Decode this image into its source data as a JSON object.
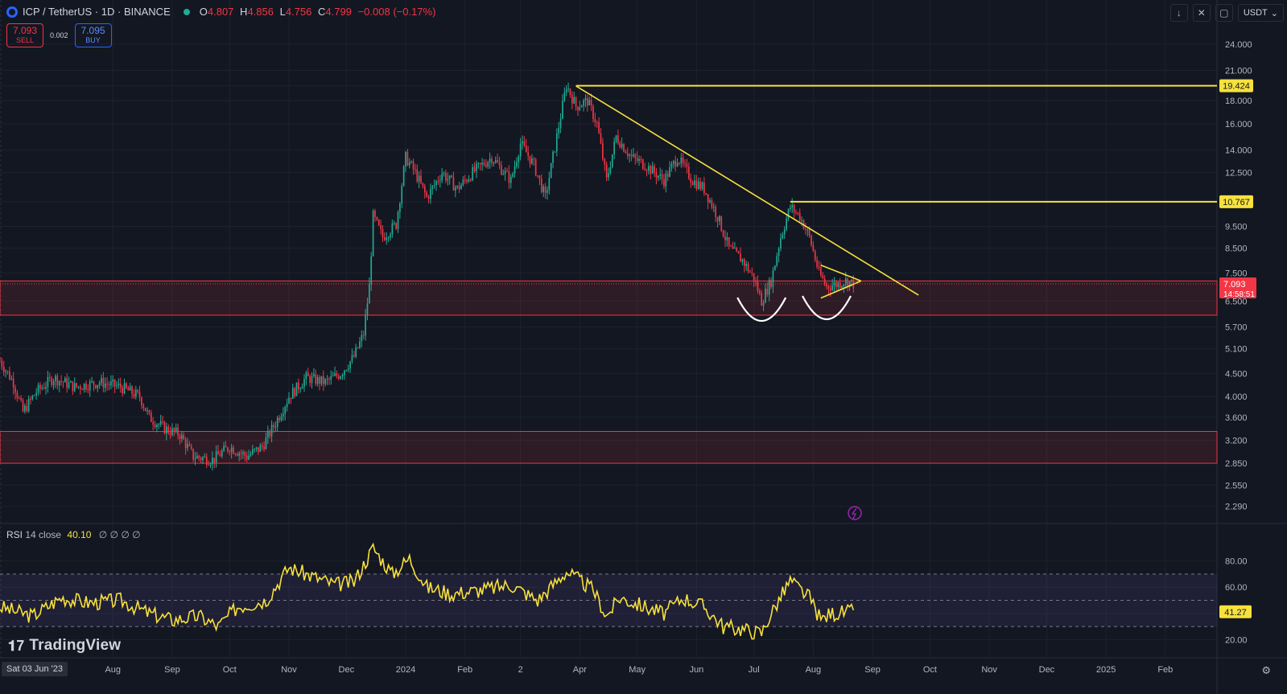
{
  "header": {
    "symbol": "ICP / TetherUS · 1D · BINANCE",
    "ohlc": {
      "o_label": "O",
      "o": "4.807",
      "h_label": "H",
      "h": "4.856",
      "l_label": "L",
      "l": "4.756",
      "c_label": "C",
      "c": "4.799",
      "change": "−0.008 (−0.17%)"
    }
  },
  "trade": {
    "sell_price": "7.093",
    "sell_label": "SELL",
    "spread": "0.002",
    "buy_price": "7.095",
    "buy_label": "BUY"
  },
  "toolbar": {
    "currency": "USDT"
  },
  "rsi": {
    "name": "RSI",
    "params": "14 close",
    "value": "40.10",
    "placeholders": "∅ ∅ ∅ ∅",
    "current_label": "41.27"
  },
  "branding": {
    "logo_text": "TradingView"
  },
  "cursor_date": "Sat 03 Jun '23",
  "colors": {
    "background": "#131722",
    "up": "#22ab94",
    "down": "#f23645",
    "trendline": "#f7e13c",
    "zone": "#f23645",
    "rsi_band": "#7e57c2"
  },
  "chart_data": [
    {
      "type": "candlestick",
      "scale": "log",
      "x_range": [
        "2023-06-03",
        "2025-02-28"
      ],
      "ylim": [
        2.15,
        25.5
      ],
      "y_ticks": [
        2.29,
        2.55,
        2.85,
        3.2,
        3.6,
        4.0,
        4.5,
        5.1,
        5.7,
        6.5,
        7.5,
        8.5,
        9.5,
        10.767,
        12.5,
        14.0,
        16.0,
        18.0,
        19.424,
        21.0,
        24.0
      ],
      "y_tick_labels": [
        "2.290",
        "2.550",
        "2.850",
        "3.200",
        "3.600",
        "4.000",
        "4.500",
        "5.100",
        "5.700",
        "6.500",
        "7.500",
        "8.500",
        "9.500",
        "10.767",
        "12.500",
        "14.000",
        "16.000",
        "18.000",
        "19.424",
        "21.000",
        "24.000"
      ],
      "x_ticks": [
        {
          "label": "Aug",
          "date": "2023-08-01"
        },
        {
          "label": "Sep",
          "date": "2023-09-01"
        },
        {
          "label": "Oct",
          "date": "2023-10-01"
        },
        {
          "label": "Nov",
          "date": "2023-11-01"
        },
        {
          "label": "Dec",
          "date": "2023-12-01"
        },
        {
          "label": "2024",
          "date": "2024-01-01"
        },
        {
          "label": "Feb",
          "date": "2024-02-01"
        },
        {
          "label": "2",
          "date": "2024-03-01"
        },
        {
          "label": "Apr",
          "date": "2024-04-01"
        },
        {
          "label": "May",
          "date": "2024-05-01"
        },
        {
          "label": "Jun",
          "date": "2024-06-01"
        },
        {
          "label": "Jul",
          "date": "2024-07-01"
        },
        {
          "label": "Aug",
          "date": "2024-08-01"
        },
        {
          "label": "Sep",
          "date": "2024-09-01"
        },
        {
          "label": "Oct",
          "date": "2024-10-01"
        },
        {
          "label": "Nov",
          "date": "2024-11-01"
        },
        {
          "label": "Dec",
          "date": "2024-12-01"
        },
        {
          "label": "2025",
          "date": "2025-01-01"
        },
        {
          "label": "Feb",
          "date": "2025-02-01"
        }
      ],
      "close_path": [
        [
          "2023-06-03",
          4.8
        ],
        [
          "2023-06-10",
          4.3
        ],
        [
          "2023-06-15",
          3.7
        ],
        [
          "2023-06-22",
          4.1
        ],
        [
          "2023-07-01",
          4.4
        ],
        [
          "2023-07-12",
          4.2
        ],
        [
          "2023-07-25",
          4.3
        ],
        [
          "2023-08-05",
          4.2
        ],
        [
          "2023-08-15",
          4.0
        ],
        [
          "2023-08-20",
          3.6
        ],
        [
          "2023-08-28",
          3.4
        ],
        [
          "2023-09-05",
          3.3
        ],
        [
          "2023-09-12",
          2.95
        ],
        [
          "2023-09-22",
          2.9
        ],
        [
          "2023-10-01",
          3.1
        ],
        [
          "2023-10-10",
          2.95
        ],
        [
          "2023-10-18",
          3.1
        ],
        [
          "2023-10-25",
          3.5
        ],
        [
          "2023-11-01",
          4.0
        ],
        [
          "2023-11-10",
          4.4
        ],
        [
          "2023-11-20",
          4.3
        ],
        [
          "2023-11-28",
          4.5
        ],
        [
          "2023-12-05",
          4.9
        ],
        [
          "2023-12-10",
          5.5
        ],
        [
          "2023-12-13",
          7.0
        ],
        [
          "2023-12-15",
          10.0
        ],
        [
          "2023-12-20",
          9.0
        ],
        [
          "2023-12-27",
          9.6
        ],
        [
          "2024-01-01",
          13.5
        ],
        [
          "2024-01-06",
          12.5
        ],
        [
          "2024-01-12",
          11.0
        ],
        [
          "2024-01-20",
          12.5
        ],
        [
          "2024-01-28",
          11.5
        ],
        [
          "2024-02-05",
          12.5
        ],
        [
          "2024-02-15",
          13.5
        ],
        [
          "2024-02-25",
          12.0
        ],
        [
          "2024-03-01",
          14.5
        ],
        [
          "2024-03-08",
          13.0
        ],
        [
          "2024-03-14",
          11.0
        ],
        [
          "2024-03-20",
          15.0
        ],
        [
          "2024-03-25",
          19.5
        ],
        [
          "2024-03-30",
          17.5
        ],
        [
          "2024-04-05",
          18.0
        ],
        [
          "2024-04-10",
          16.0
        ],
        [
          "2024-04-15",
          12.0
        ],
        [
          "2024-04-20",
          15.0
        ],
        [
          "2024-04-28",
          13.5
        ],
        [
          "2024-05-05",
          13.0
        ],
        [
          "2024-05-15",
          12.0
        ],
        [
          "2024-05-22",
          13.5
        ],
        [
          "2024-05-30",
          12.0
        ],
        [
          "2024-06-05",
          11.5
        ],
        [
          "2024-06-12",
          10.0
        ],
        [
          "2024-06-18",
          8.5
        ],
        [
          "2024-06-25",
          8.0
        ],
        [
          "2024-07-01",
          7.3
        ],
        [
          "2024-07-05",
          6.5
        ],
        [
          "2024-07-10",
          7.2
        ],
        [
          "2024-07-15",
          9.0
        ],
        [
          "2024-07-20",
          10.5
        ],
        [
          "2024-07-25",
          10.0
        ],
        [
          "2024-07-30",
          9.0
        ],
        [
          "2024-08-04",
          7.5
        ],
        [
          "2024-08-08",
          7.0
        ],
        [
          "2024-08-14",
          7.1
        ],
        [
          "2024-08-18",
          7.2
        ],
        [
          "2024-08-22",
          7.093
        ]
      ],
      "horizontal_lines": [
        {
          "value": 19.424,
          "label": "19.424"
        },
        {
          "value": 10.767,
          "label": "10.767"
        }
      ],
      "trendlines": [
        {
          "from": [
            "2024-03-30",
            19.4
          ],
          "to": [
            "2024-09-25",
            6.7
          ]
        },
        {
          "from": [
            "2024-08-05",
            7.8
          ],
          "to": [
            "2024-08-26",
            7.2
          ]
        },
        {
          "from": [
            "2024-08-05",
            6.6
          ],
          "to": [
            "2024-08-26",
            7.2
          ]
        }
      ],
      "zones": [
        {
          "from_value": 6.05,
          "to_value": 7.2,
          "label": ""
        },
        {
          "from_value": 2.85,
          "to_value": 3.35,
          "label": ""
        }
      ],
      "current_price": {
        "value": 7.093,
        "label": "7.093",
        "countdown": "14:58:51"
      }
    },
    {
      "type": "line",
      "name": "RSI",
      "ylim": [
        8,
        100
      ],
      "y_ticks": [
        20,
        40,
        60,
        80
      ],
      "y_tick_labels": [
        "20.00",
        "",
        "60.00",
        "80.00"
      ],
      "band": [
        30,
        70
      ],
      "midline": 50,
      "path": [
        [
          "2023-06-03",
          45
        ],
        [
          "2023-06-20",
          38
        ],
        [
          "2023-07-05",
          52
        ],
        [
          "2023-07-20",
          48
        ],
        [
          "2023-08-05",
          50
        ],
        [
          "2023-08-20",
          40
        ],
        [
          "2023-09-01",
          35
        ],
        [
          "2023-09-15",
          38
        ],
        [
          "2023-09-25",
          30
        ],
        [
          "2023-10-05",
          45
        ],
        [
          "2023-10-20",
          50
        ],
        [
          "2023-11-01",
          75
        ],
        [
          "2023-11-10",
          70
        ],
        [
          "2023-11-25",
          62
        ],
        [
          "2023-12-05",
          64
        ],
        [
          "2023-12-15",
          90
        ],
        [
          "2023-12-25",
          70
        ],
        [
          "2024-01-03",
          82
        ],
        [
          "2024-01-12",
          60
        ],
        [
          "2024-01-25",
          55
        ],
        [
          "2024-02-10",
          58
        ],
        [
          "2024-02-25",
          62
        ],
        [
          "2024-03-10",
          50
        ],
        [
          "2024-03-25",
          72
        ],
        [
          "2024-04-08",
          58
        ],
        [
          "2024-04-15",
          38
        ],
        [
          "2024-04-22",
          52
        ],
        [
          "2024-05-05",
          45
        ],
        [
          "2024-05-15",
          40
        ],
        [
          "2024-05-25",
          52
        ],
        [
          "2024-06-05",
          45
        ],
        [
          "2024-06-15",
          30
        ],
        [
          "2024-06-25",
          28
        ],
        [
          "2024-07-05",
          25
        ],
        [
          "2024-07-10",
          40
        ],
        [
          "2024-07-20",
          65
        ],
        [
          "2024-07-30",
          52
        ],
        [
          "2024-08-05",
          35
        ],
        [
          "2024-08-10",
          40
        ],
        [
          "2024-08-22",
          41.27
        ]
      ]
    }
  ]
}
